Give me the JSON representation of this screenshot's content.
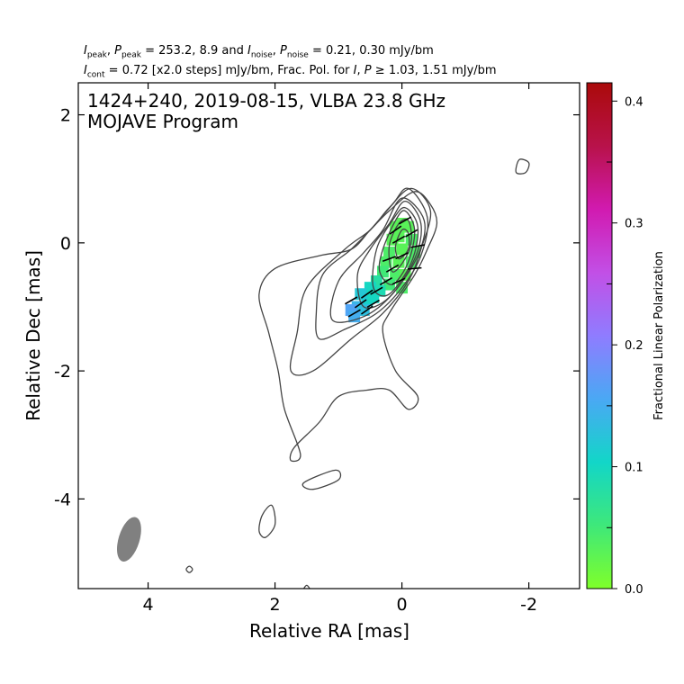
{
  "header": {
    "line1": {
      "i_peak_label": "I",
      "i_peak_sub": "peak",
      "p_peak_label": "P",
      "p_peak_sub": "peak",
      "peak_text": "= 253.2, 8.9 and",
      "i_noise_label": "I",
      "i_noise_sub": "noise",
      "p_noise_label": "P",
      "p_noise_sub": "noise",
      "noise_text": "= 0.21, 0.30 mJy/bm"
    },
    "line2": {
      "i_cont_label": "I",
      "i_cont_sub": "cont",
      "cont_text": "= 0.72 [x2.0 steps] mJy/bm, Frac. Pol. for",
      "frac_i": "I",
      "frac_p": "P",
      "geq": "≥",
      "frac_text": "1.03, 1.51 mJy/bm"
    }
  },
  "chart_data": {
    "type": "contour",
    "title_line1": "1424+240, 2019-08-15, VLBA 23.8 GHz",
    "title_line2": "MOJAVE Program",
    "xlabel": "Relative RA [mas]",
    "ylabel": "Relative Dec [mas]",
    "xlim": [
      5.1,
      -2.8
    ],
    "ylim": [
      -5.4,
      2.5
    ],
    "x_ticks": [
      4,
      2,
      0,
      -2
    ],
    "x_tick_labels": [
      "4",
      "2",
      "0",
      "-2"
    ],
    "y_ticks": [
      2,
      0,
      -2,
      -4
    ],
    "y_tick_labels": [
      "2",
      "0",
      "-2",
      "-4"
    ],
    "colorbar": {
      "label": "Fractional Linear Polarization",
      "range": [
        0.0,
        0.415
      ],
      "ticks": [
        0.0,
        0.1,
        0.2,
        0.3,
        0.4
      ],
      "tick_labels": [
        "0.0",
        "0.1",
        "0.2",
        "0.3",
        "0.4"
      ],
      "colors": [
        "#7fff2a",
        "#3ee87a",
        "#12d6c8",
        "#4aa8f4",
        "#8f7cff",
        "#c24fe6",
        "#d11ab0",
        "#b8124a",
        "#aa0a0a"
      ]
    },
    "contour_color": "#444444",
    "beam": {
      "ra": 4.3,
      "dec": -4.63,
      "major_mas": 0.72,
      "minor_mas": 0.33,
      "pa_deg": 17,
      "color": "#808080"
    },
    "contours": [
      [
        [
          1.3,
          -0.2
        ],
        [
          0.8,
          -0.1
        ],
        [
          0.5,
          0.2
        ],
        [
          0.2,
          0.5
        ],
        [
          -0.2,
          0.8
        ],
        [
          -0.45,
          0.6
        ],
        [
          -0.55,
          0.3
        ],
        [
          -0.4,
          -0.1
        ],
        [
          -0.2,
          -0.5
        ],
        [
          0.2,
          -1.1
        ],
        [
          0.3,
          -1.4
        ],
        [
          0.1,
          -2.0
        ],
        [
          -0.25,
          -2.4
        ],
        [
          -0.1,
          -2.6
        ],
        [
          0.2,
          -2.3
        ],
        [
          0.55,
          -2.3
        ],
        [
          1.0,
          -2.4
        ],
        [
          1.3,
          -2.8
        ],
        [
          1.7,
          -3.2
        ],
        [
          1.75,
          -3.4
        ],
        [
          1.6,
          -3.3
        ],
        [
          1.85,
          -2.6
        ],
        [
          1.95,
          -2.0
        ],
        [
          2.1,
          -1.4
        ],
        [
          2.25,
          -0.8
        ],
        [
          2.0,
          -0.4
        ]
      ],
      [
        [
          0.9,
          -0.1
        ],
        [
          0.5,
          0.2
        ],
        [
          0.2,
          0.55
        ],
        [
          -0.15,
          0.85
        ],
        [
          -0.45,
          0.5
        ],
        [
          -0.3,
          -0.1
        ],
        [
          -0.1,
          -0.6
        ],
        [
          0.3,
          -1.1
        ],
        [
          0.8,
          -1.5
        ],
        [
          1.4,
          -2.0
        ],
        [
          1.75,
          -2.0
        ],
        [
          1.65,
          -1.4
        ],
        [
          1.5,
          -0.7
        ]
      ],
      [
        [
          0.8,
          -0.1
        ],
        [
          0.5,
          0.2
        ],
        [
          0.15,
          0.6
        ],
        [
          -0.1,
          0.85
        ],
        [
          -0.4,
          0.4
        ],
        [
          -0.3,
          -0.2
        ],
        [
          0.0,
          -0.7
        ],
        [
          0.4,
          -1.1
        ],
        [
          0.9,
          -1.35
        ],
        [
          1.3,
          -1.5
        ],
        [
          1.35,
          -1.1
        ],
        [
          1.25,
          -0.5
        ]
      ],
      [
        [
          0.6,
          -0.15
        ],
        [
          0.3,
          0.2
        ],
        [
          0.0,
          0.7
        ],
        [
          -0.35,
          0.35
        ],
        [
          -0.25,
          -0.2
        ],
        [
          0.15,
          -0.8
        ],
        [
          0.6,
          -1.15
        ],
        [
          1.1,
          -1.2
        ],
        [
          1.0,
          -0.6
        ]
      ],
      [
        [
          0.5,
          -0.1
        ],
        [
          0.2,
          0.3
        ],
        [
          -0.05,
          0.65
        ],
        [
          -0.3,
          0.3
        ],
        [
          -0.2,
          -0.25
        ],
        [
          0.2,
          -0.85
        ],
        [
          0.6,
          -1.0
        ],
        [
          0.7,
          -0.5
        ]
      ],
      [
        [
          0.4,
          -0.1
        ],
        [
          0.15,
          0.35
        ],
        [
          -0.05,
          0.55
        ],
        [
          -0.25,
          0.25
        ],
        [
          -0.15,
          -0.3
        ],
        [
          0.2,
          -0.8
        ],
        [
          0.45,
          -0.7
        ]
      ],
      [
        [
          0.3,
          -0.1
        ],
        [
          0.1,
          0.35
        ],
        [
          -0.05,
          0.5
        ],
        [
          -0.2,
          0.2
        ],
        [
          -0.1,
          -0.3
        ],
        [
          0.15,
          -0.65
        ],
        [
          0.35,
          -0.45
        ]
      ],
      [
        [
          0.2,
          -0.05
        ],
        [
          0.05,
          0.3
        ],
        [
          -0.1,
          0.35
        ],
        [
          -0.15,
          0.05
        ],
        [
          -0.05,
          -0.25
        ],
        [
          0.15,
          -0.45
        ]
      ],
      [
        [
          0.1,
          -0.05
        ],
        [
          0.0,
          0.2
        ],
        [
          -0.1,
          0.15
        ],
        [
          -0.1,
          -0.1
        ],
        [
          0.05,
          -0.25
        ]
      ],
      [
        [
          2.2,
          -4.25
        ],
        [
          2.05,
          -4.1
        ],
        [
          2.0,
          -4.4
        ],
        [
          2.15,
          -4.6
        ],
        [
          2.25,
          -4.5
        ]
      ],
      [
        [
          1.55,
          -3.75
        ],
        [
          1.05,
          -3.55
        ],
        [
          1.0,
          -3.7
        ],
        [
          1.4,
          -3.85
        ]
      ],
      [
        [
          -1.95,
          1.1
        ],
        [
          -2.0,
          1.25
        ],
        [
          -1.85,
          1.3
        ],
        [
          -1.8,
          1.1
        ]
      ],
      [
        [
          3.35,
          -5.15
        ],
        [
          3.3,
          -5.1
        ],
        [
          3.35,
          -5.05
        ],
        [
          3.4,
          -5.1
        ]
      ],
      [
        [
          1.55,
          -5.42
        ],
        [
          1.5,
          -5.35
        ],
        [
          1.45,
          -5.42
        ]
      ]
    ],
    "polarization_pixels": [
      {
        "ra": 0.0,
        "dec": 0.3,
        "fp": 0.03
      },
      {
        "ra": -0.1,
        "dec": 0.25,
        "fp": 0.03
      },
      {
        "ra": 0.1,
        "dec": 0.25,
        "fp": 0.03
      },
      {
        "ra": 0.05,
        "dec": 0.1,
        "fp": 0.03
      },
      {
        "ra": -0.15,
        "dec": 0.05,
        "fp": 0.04
      },
      {
        "ra": 0.15,
        "dec": 0.05,
        "fp": 0.03
      },
      {
        "ra": 0.0,
        "dec": -0.1,
        "fp": 0.03
      },
      {
        "ra": -0.2,
        "dec": -0.15,
        "fp": 0.04
      },
      {
        "ra": 0.2,
        "dec": -0.15,
        "fp": 0.04
      },
      {
        "ra": 0.05,
        "dec": -0.3,
        "fp": 0.03
      },
      {
        "ra": -0.15,
        "dec": -0.3,
        "fp": 0.04
      },
      {
        "ra": 0.25,
        "dec": -0.3,
        "fp": 0.04
      },
      {
        "ra": 0.1,
        "dec": -0.5,
        "fp": 0.04
      },
      {
        "ra": -0.05,
        "dec": -0.5,
        "fp": 0.03
      },
      {
        "ra": 0.3,
        "dec": -0.45,
        "fp": 0.05
      },
      {
        "ra": 0.2,
        "dec": -0.65,
        "fp": 0.05
      },
      {
        "ra": 0.0,
        "dec": -0.7,
        "fp": 0.04
      },
      {
        "ra": 0.4,
        "dec": -0.6,
        "fp": 0.08
      },
      {
        "ra": 0.35,
        "dec": -0.75,
        "fp": 0.09
      },
      {
        "ra": 0.5,
        "dec": -0.7,
        "fp": 0.1
      },
      {
        "ra": 0.55,
        "dec": -0.9,
        "fp": 0.11
      },
      {
        "ra": 0.65,
        "dec": -0.8,
        "fp": 0.12
      },
      {
        "ra": 0.7,
        "dec": -1.0,
        "fp": 0.14
      },
      {
        "ra": 0.8,
        "dec": -1.05,
        "fp": 0.16
      },
      {
        "ra": 0.6,
        "dec": -1.05,
        "fp": 0.13
      },
      {
        "ra": 0.75,
        "dec": -1.15,
        "fp": 0.15
      },
      {
        "ra": 0.45,
        "dec": -0.85,
        "fp": 0.1
      }
    ],
    "evpa_ticks": [
      {
        "ra": -0.05,
        "dec": 0.35,
        "angle": 30
      },
      {
        "ra": -0.15,
        "dec": 0.15,
        "angle": 30
      },
      {
        "ra": 0.05,
        "dec": 0.05,
        "angle": 30
      },
      {
        "ra": -0.25,
        "dec": -0.05,
        "angle": 10
      },
      {
        "ra": 0.0,
        "dec": -0.2,
        "angle": 25
      },
      {
        "ra": -0.2,
        "dec": -0.4,
        "angle": 5
      },
      {
        "ra": 0.15,
        "dec": -0.4,
        "angle": 30
      },
      {
        "ra": 0.05,
        "dec": -0.6,
        "angle": 25
      },
      {
        "ra": 0.25,
        "dec": -0.6,
        "angle": 30
      },
      {
        "ra": 0.4,
        "dec": -0.75,
        "angle": 30
      },
      {
        "ra": 0.55,
        "dec": -0.8,
        "angle": 35
      },
      {
        "ra": 0.45,
        "dec": -0.95,
        "angle": 30
      },
      {
        "ra": 0.65,
        "dec": -0.95,
        "angle": 35
      },
      {
        "ra": 0.8,
        "dec": -0.9,
        "angle": 30
      },
      {
        "ra": 0.75,
        "dec": -1.1,
        "angle": 30
      },
      {
        "ra": 0.55,
        "dec": -1.05,
        "angle": 35
      },
      {
        "ra": 0.2,
        "dec": -0.25,
        "angle": 20
      },
      {
        "ra": 0.1,
        "dec": 0.2,
        "angle": 35
      }
    ]
  }
}
